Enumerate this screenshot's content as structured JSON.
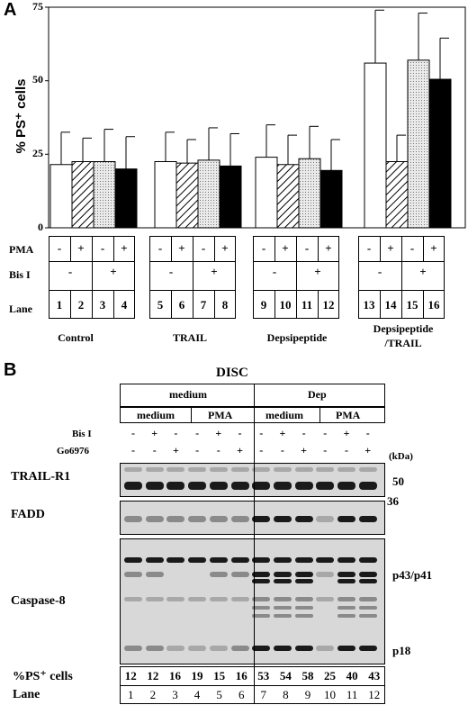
{
  "panelA": {
    "letter": "A",
    "chart_data": {
      "type": "bar",
      "ylabel": "% PS⁺ cells",
      "ylim": [
        0,
        75
      ],
      "yticks": [
        "0",
        "25",
        "50",
        "75"
      ],
      "groups": [
        "Control",
        "TRAIL",
        "Depsipeptide",
        "Depsipeptide\n/TRAIL"
      ],
      "lanes": [
        1,
        2,
        3,
        4,
        5,
        6,
        7,
        8,
        9,
        10,
        11,
        12,
        13,
        14,
        15,
        16
      ],
      "values": [
        21.5,
        22.5,
        22.5,
        20,
        22.5,
        22,
        23,
        21,
        24,
        21.5,
        23.5,
        19.5,
        56,
        22.5,
        57,
        50.5
      ],
      "errors": [
        11,
        8,
        11,
        11,
        10,
        8,
        11,
        11,
        11,
        10,
        11,
        10.5,
        18,
        9,
        16,
        14
      ],
      "fill_patterns": [
        "white",
        "hatched",
        "dotted",
        "black"
      ]
    },
    "controls": {
      "row_pma": "PMA",
      "row_bis": "Bis I",
      "row_lane": "Lane",
      "pma_values": [
        "-",
        "+",
        "-",
        "+"
      ],
      "bis_values": [
        "-",
        "+"
      ]
    },
    "group_labels": [
      "Control",
      "TRAIL",
      "Depsipeptide",
      "Depsipeptide",
      "/TRAIL"
    ]
  },
  "panelB": {
    "letter": "B",
    "title": "DISC",
    "top_groups": [
      "medium",
      "Dep"
    ],
    "sub_groups": [
      "medium",
      "PMA",
      "medium",
      "PMA"
    ],
    "row_bis": "Bis I",
    "row_go": "Go6976",
    "kda": "(kDa)",
    "bis_values": [
      "-",
      "+",
      "-",
      "-",
      "+",
      "-",
      "-",
      "+",
      "-",
      "-",
      "+",
      "-"
    ],
    "go_values": [
      "-",
      "-",
      "+",
      "-",
      "-",
      "+",
      "-",
      "-",
      "+",
      "-",
      "-",
      "+"
    ],
    "blots": [
      "TRAIL-R1",
      "FADD",
      "Caspase-8"
    ],
    "markers": [
      "50",
      "36",
      "p43/p41",
      "p18"
    ],
    "ps_label": "%PS⁺ cells",
    "ps_values": [
      "12",
      "12",
      "16",
      "19",
      "15",
      "16",
      "53",
      "54",
      "58",
      "25",
      "40",
      "43"
    ],
    "lane_label": "Lane",
    "lanes": [
      "1",
      "2",
      "3",
      "4",
      "5",
      "6",
      "7",
      "8",
      "9",
      "10",
      "11",
      "12"
    ]
  }
}
